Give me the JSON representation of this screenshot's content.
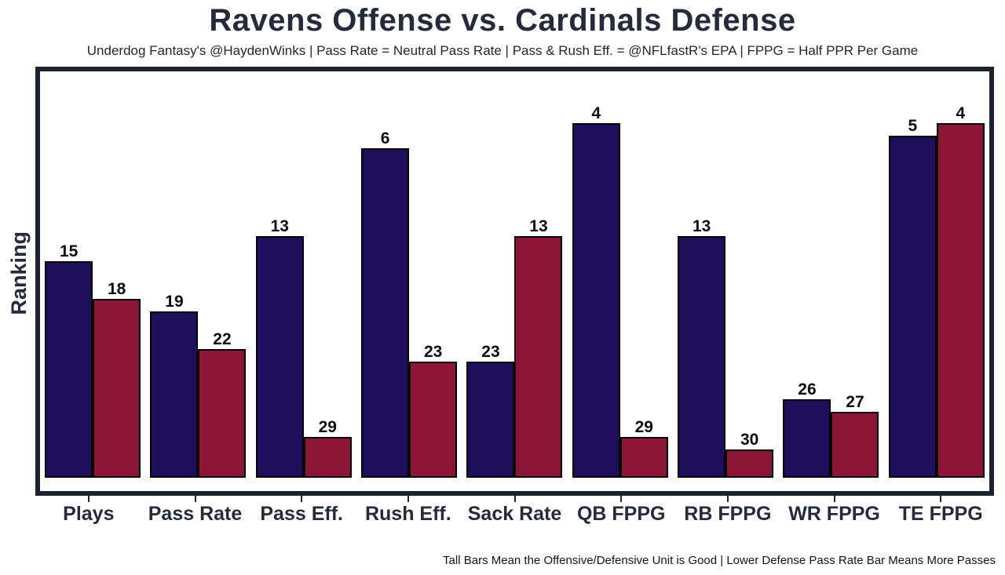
{
  "title": "Ravens Offense vs. Cardinals Defense",
  "subtitle": "Underdog Fantasy's @HaydenWinks | Pass Rate = Neutral Pass Rate | Pass & Rush Eff. = @NFLfastR's EPA | FPPG = Half PPR Per Game",
  "footer": "Tall Bars Mean the Offensive/Defensive Unit is Good | Lower Defense Pass Rate Bar Means More Passes",
  "ylabel": "Ranking",
  "colors": {
    "offense_bar": "#1E0E5C",
    "defense_bar": "#8C1536",
    "bar_border": "#000000",
    "frame": "#1c2230",
    "text": "#242b3a"
  },
  "chart_data": {
    "type": "bar",
    "title": "Ravens Offense vs. Cardinals Defense",
    "subtitle": "Underdog Fantasy's @HaydenWinks | Pass Rate = Neutral Pass Rate | Pass & Rush Eff. = @NFLfastR's EPA | FPPG = Half PPR Per Game",
    "xlabel": "",
    "ylabel": "Ranking",
    "footnote": "Tall Bars Mean the Offensive/Defensive Unit is Good | Lower Defense Pass Rate Bar Means More Passes",
    "categories": [
      "Plays",
      "Pass Rate",
      "Pass Eff.",
      "Rush Eff.",
      "Sack Rate",
      "QB FPPG",
      "RB FPPG",
      "WR FPPG",
      "TE FPPG"
    ],
    "series": [
      {
        "name": "Ravens Offense",
        "color": "#1E0E5C",
        "values": [
          15,
          19,
          13,
          6,
          23,
          4,
          13,
          26,
          5
        ]
      },
      {
        "name": "Cardinals Defense",
        "color": "#8C1536",
        "values": [
          18,
          22,
          29,
          23,
          13,
          29,
          30,
          27,
          4
        ]
      }
    ],
    "value_meaning": "NFL ranking (1 = best of 32); taller bar = better ranking",
    "bar_height_rule": "height proportional to (32 - rank)",
    "ylim": [
      0,
      32
    ],
    "grid": false,
    "legend": false
  }
}
